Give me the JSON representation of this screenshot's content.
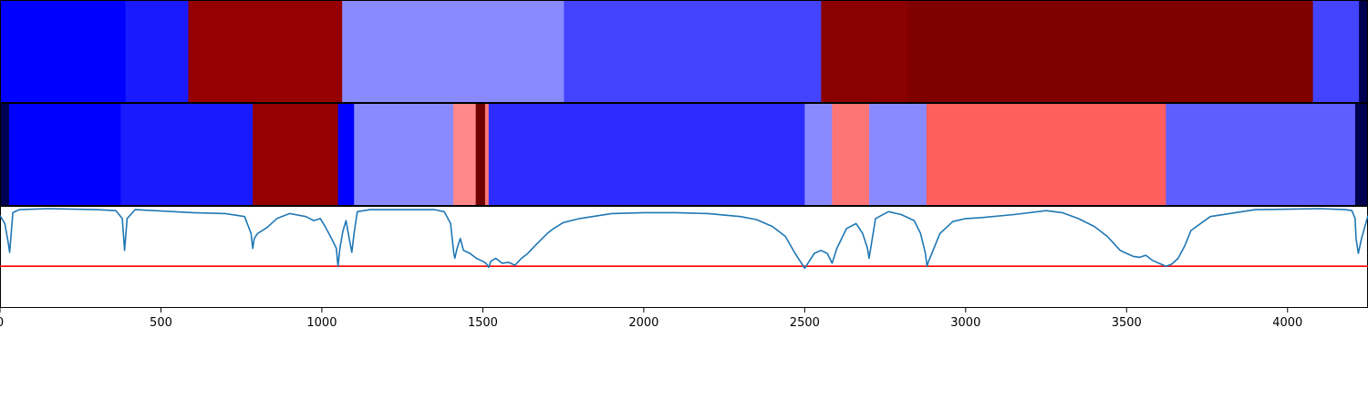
{
  "chart_data": {
    "type": "heatmap",
    "xlim": [
      0,
      4250
    ],
    "x_ticks": [
      0,
      500,
      1000,
      1500,
      2000,
      2500,
      3000,
      3500,
      4000
    ],
    "x_tick_labels": [
      "0",
      "500",
      "1000",
      "1500",
      "2000",
      "2500",
      "3000",
      "3500",
      "4000"
    ],
    "grid": false,
    "legend": "none",
    "band_top": [
      {
        "x0": 0,
        "x1": 390,
        "color": "#0000ff"
      },
      {
        "x0": 390,
        "x1": 585,
        "color": "#1a1aff"
      },
      {
        "x0": 585,
        "x1": 1063,
        "color": "#950000"
      },
      {
        "x0": 1063,
        "x1": 1752,
        "color": "#8a8aff"
      },
      {
        "x0": 1752,
        "x1": 2551,
        "color": "#4444ff"
      },
      {
        "x0": 2551,
        "x1": 2818,
        "color": "#8b0000"
      },
      {
        "x0": 2818,
        "x1": 4079,
        "color": "#800000"
      },
      {
        "x0": 4079,
        "x1": 4222,
        "color": "#4444ff"
      },
      {
        "x0": 4222,
        "x1": 4250,
        "color": "#000050"
      }
    ],
    "band_bottom": [
      {
        "x0": 0,
        "x1": 28,
        "color": "#000050"
      },
      {
        "x0": 28,
        "x1": 375,
        "color": "#0000ff"
      },
      {
        "x0": 375,
        "x1": 785,
        "color": "#1a1aff"
      },
      {
        "x0": 785,
        "x1": 1050,
        "color": "#950000"
      },
      {
        "x0": 1050,
        "x1": 1100,
        "color": "#0000ff"
      },
      {
        "x0": 1100,
        "x1": 1408,
        "color": "#8a8aff"
      },
      {
        "x0": 1408,
        "x1": 1478,
        "color": "#ff8888"
      },
      {
        "x0": 1478,
        "x1": 1507,
        "color": "#700000"
      },
      {
        "x0": 1507,
        "x1": 1518,
        "color": "#ff7777"
      },
      {
        "x0": 1518,
        "x1": 2500,
        "color": "#2c2cff"
      },
      {
        "x0": 2500,
        "x1": 2585,
        "color": "#8a8aff"
      },
      {
        "x0": 2585,
        "x1": 2700,
        "color": "#ff7474"
      },
      {
        "x0": 2700,
        "x1": 2878,
        "color": "#8a8aff"
      },
      {
        "x0": 2878,
        "x1": 3622,
        "color": "#ff5e5e"
      },
      {
        "x0": 3622,
        "x1": 4210,
        "color": "#5e5eff"
      },
      {
        "x0": 4210,
        "x1": 4250,
        "color": "#000050"
      }
    ],
    "spectrum": {
      "color": "#1f77b4",
      "x": [
        0,
        15,
        25,
        30,
        40,
        60,
        150,
        300,
        360,
        380,
        387,
        395,
        420,
        600,
        700,
        760,
        780,
        785,
        790,
        800,
        830,
        860,
        900,
        950,
        975,
        995,
        1010,
        1030,
        1045,
        1050,
        1056,
        1065,
        1075,
        1085,
        1093,
        1100,
        1110,
        1150,
        1250,
        1350,
        1380,
        1400,
        1410,
        1413,
        1420,
        1430,
        1440,
        1460,
        1480,
        1500,
        1510,
        1518,
        1525,
        1540,
        1560,
        1580,
        1600,
        1620,
        1640,
        1660,
        1700,
        1720,
        1750,
        1800,
        1900,
        2000,
        2100,
        2200,
        2300,
        2350,
        2400,
        2440,
        2470,
        2490,
        2500,
        2510,
        2530,
        2550,
        2570,
        2585,
        2600,
        2630,
        2660,
        2680,
        2695,
        2700,
        2705,
        2720,
        2760,
        2800,
        2840,
        2860,
        2875,
        2880,
        2885,
        2895,
        2920,
        2960,
        3000,
        3050,
        3150,
        3250,
        3300,
        3350,
        3400,
        3440,
        3460,
        3480,
        3500,
        3520,
        3540,
        3560,
        3580,
        3600,
        3622,
        3640,
        3660,
        3680,
        3700,
        3760,
        3900,
        4100,
        4180,
        4200,
        4210,
        4213,
        4220,
        4230,
        4250
      ],
      "y": [
        0.93,
        0.85,
        0.67,
        0.56,
        0.96,
        0.99,
        1.0,
        0.99,
        0.98,
        0.9,
        0.58,
        0.9,
        0.99,
        0.96,
        0.95,
        0.92,
        0.75,
        0.6,
        0.7,
        0.75,
        0.81,
        0.9,
        0.95,
        0.92,
        0.88,
        0.9,
        0.82,
        0.7,
        0.6,
        0.42,
        0.6,
        0.77,
        0.88,
        0.7,
        0.56,
        0.75,
        0.97,
        0.99,
        0.99,
        0.99,
        0.97,
        0.85,
        0.55,
        0.5,
        0.6,
        0.7,
        0.58,
        0.55,
        0.5,
        0.47,
        0.45,
        0.41,
        0.47,
        0.5,
        0.45,
        0.46,
        0.43,
        0.5,
        0.55,
        0.62,
        0.75,
        0.8,
        0.86,
        0.9,
        0.95,
        0.96,
        0.96,
        0.95,
        0.92,
        0.89,
        0.82,
        0.72,
        0.55,
        0.45,
        0.4,
        0.45,
        0.55,
        0.58,
        0.55,
        0.45,
        0.6,
        0.8,
        0.85,
        0.75,
        0.6,
        0.5,
        0.6,
        0.9,
        0.97,
        0.94,
        0.88,
        0.75,
        0.55,
        0.42,
        0.47,
        0.55,
        0.75,
        0.87,
        0.9,
        0.91,
        0.94,
        0.98,
        0.96,
        0.9,
        0.82,
        0.72,
        0.65,
        0.58,
        0.55,
        0.52,
        0.51,
        0.53,
        0.48,
        0.45,
        0.42,
        0.44,
        0.5,
        0.62,
        0.78,
        0.92,
        0.99,
        1.0,
        0.99,
        0.98,
        0.9,
        0.7,
        0.55,
        0.7,
        0.93,
        0.97
      ]
    },
    "threshold_line": {
      "y": 0.42,
      "color": "#ff0000"
    }
  }
}
